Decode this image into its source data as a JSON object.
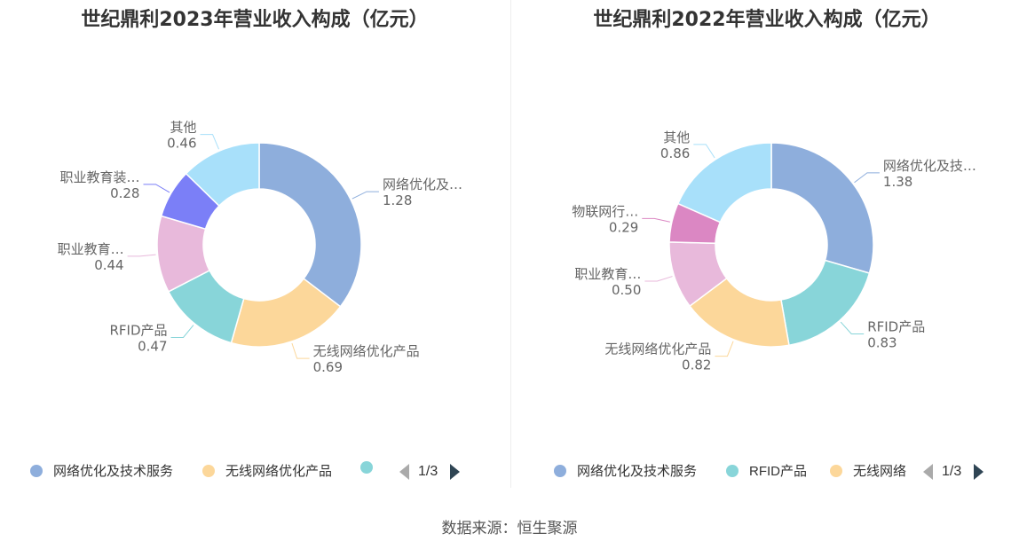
{
  "chart_data": [
    {
      "type": "pie",
      "title": "世纪鼎利2023年营业收入构成（亿元）",
      "slices": [
        {
          "label": "网络优化及…",
          "value": 1.28,
          "color": "#8eaedc"
        },
        {
          "label": "无线网络优化产品",
          "value": 0.69,
          "color": "#fcd79a"
        },
        {
          "label": "RFID产品",
          "value": 0.47,
          "color": "#88d5d9"
        },
        {
          "label": "职业教育…",
          "value": 0.44,
          "color": "#e8b9db"
        },
        {
          "label": "职业教育装…",
          "value": 0.28,
          "color": "#7b7ff7"
        },
        {
          "label": "其他",
          "value": 0.46,
          "color": "#a8e0fa"
        }
      ],
      "legend": [
        {
          "label": "网络优化及技术服务",
          "color": "#8eaedc"
        },
        {
          "label": "无线网络优化产品",
          "color": "#fcd79a"
        },
        {
          "label": "",
          "color": "#88d5d9"
        }
      ],
      "pager": "1/3"
    },
    {
      "type": "pie",
      "title": "世纪鼎利2022年营业收入构成（亿元）",
      "slices": [
        {
          "label": "网络优化及技…",
          "value": 1.38,
          "color": "#8eaedc"
        },
        {
          "label": "RFID产品",
          "value": 0.83,
          "color": "#88d5d9"
        },
        {
          "label": "无线网络优化产品",
          "value": 0.82,
          "color": "#fcd79a"
        },
        {
          "label": "职业教育…",
          "value": 0.5,
          "color": "#e8b9db"
        },
        {
          "label": "物联网行…",
          "value": 0.29,
          "color": "#db87c3"
        },
        {
          "label": "其他",
          "value": 0.86,
          "color": "#a8e0fa"
        }
      ],
      "legend": [
        {
          "label": "网络优化及技术服务",
          "color": "#8eaedc"
        },
        {
          "label": "RFID产品",
          "color": "#88d5d9"
        },
        {
          "label": "无线网络",
          "color": "#fcd79a"
        }
      ],
      "pager": "1/3"
    }
  ],
  "source": "数据来源：恒生聚源"
}
